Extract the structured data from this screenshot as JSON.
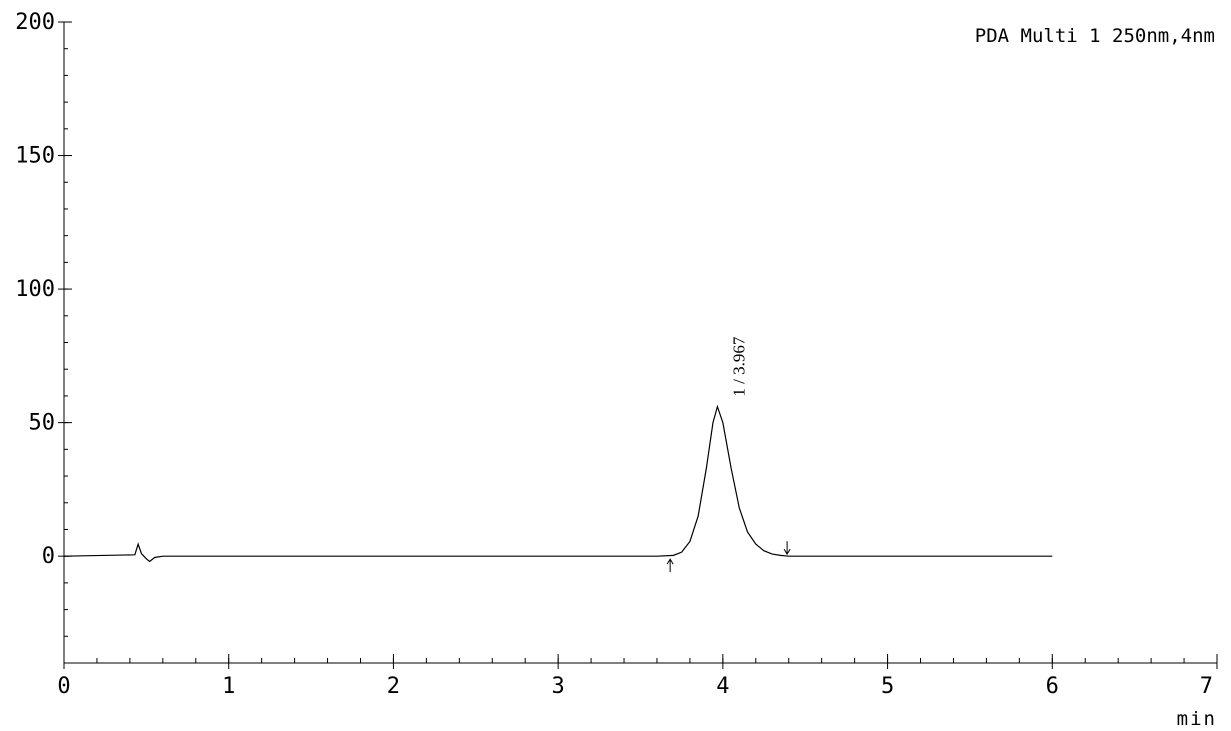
{
  "chart_data": {
    "type": "line",
    "title": "",
    "xlabel": "min",
    "ylabel": "",
    "xlim": [
      0,
      7
    ],
    "ylim": [
      -40,
      200
    ],
    "x_ticks": [
      0,
      1,
      2,
      3,
      4,
      5,
      6,
      7
    ],
    "y_ticks": [
      0,
      50,
      100,
      150,
      200
    ],
    "x_minor_step": 0.2,
    "y_minor_step": 10,
    "grid": false,
    "legend": {
      "position": "top-right",
      "entries": [
        "PDA Multi 1 250nm,4nm"
      ]
    },
    "series": [
      {
        "name": "PDA Multi 1 250nm,4nm",
        "x": [
          0.0,
          0.43,
          0.45,
          0.47,
          0.5,
          0.52,
          0.55,
          0.6,
          1.0,
          2.0,
          3.0,
          3.6,
          3.7,
          3.75,
          3.8,
          3.85,
          3.9,
          3.94,
          3.967,
          4.0,
          4.05,
          4.1,
          4.15,
          4.2,
          4.25,
          4.3,
          4.35,
          4.4,
          5.0,
          6.0
        ],
        "y": [
          0,
          0.5,
          4.5,
          1.0,
          -1.0,
          -2.0,
          -0.5,
          0,
          0,
          0,
          0,
          0,
          0.3,
          1.5,
          5.5,
          15,
          33,
          50,
          56,
          50,
          33,
          18,
          9,
          4.5,
          2,
          0.8,
          0.3,
          0,
          0,
          0
        ]
      }
    ],
    "annotations": [
      {
        "text": "1 / 3.967",
        "x": 3.967,
        "y": 56,
        "rotation": -90
      }
    ],
    "integration_marks": [
      {
        "x": 3.68,
        "direction": "up"
      },
      {
        "x": 4.39,
        "direction": "down"
      }
    ]
  }
}
